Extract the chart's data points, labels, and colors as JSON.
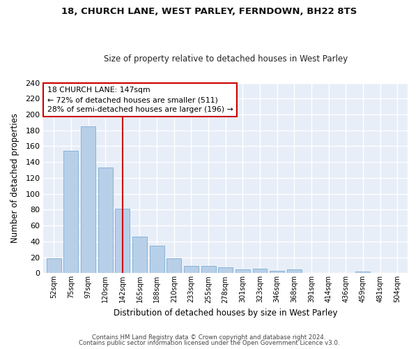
{
  "title1": "18, CHURCH LANE, WEST PARLEY, FERNDOWN, BH22 8TS",
  "title2": "Size of property relative to detached houses in West Parley",
  "xlabel": "Distribution of detached houses by size in West Parley",
  "ylabel": "Number of detached properties",
  "categories": [
    "52sqm",
    "75sqm",
    "97sqm",
    "120sqm",
    "142sqm",
    "165sqm",
    "188sqm",
    "210sqm",
    "233sqm",
    "255sqm",
    "278sqm",
    "301sqm",
    "323sqm",
    "346sqm",
    "368sqm",
    "391sqm",
    "414sqm",
    "436sqm",
    "459sqm",
    "481sqm",
    "504sqm"
  ],
  "values": [
    19,
    154,
    185,
    133,
    81,
    46,
    35,
    19,
    9,
    9,
    7,
    5,
    6,
    3,
    5,
    0,
    0,
    0,
    2,
    0,
    0
  ],
  "bar_color": "#b8cfe8",
  "bar_edge_color": "#7aadd4",
  "property_bin_index": 4,
  "annotation_line1": "18 CHURCH LANE: 147sqm",
  "annotation_line2": "← 72% of detached houses are smaller (511)",
  "annotation_line3": "28% of semi-detached houses are larger (196) →",
  "vline_color": "#cc0000",
  "annotation_box_color": "#ffffff",
  "annotation_box_edge": "#cc0000",
  "footer1": "Contains HM Land Registry data © Crown copyright and database right 2024.",
  "footer2": "Contains public sector information licensed under the Open Government Licence v3.0.",
  "ylim": [
    0,
    240
  ],
  "yticks": [
    0,
    20,
    40,
    60,
    80,
    100,
    120,
    140,
    160,
    180,
    200,
    220,
    240
  ],
  "background_color": "#ffffff",
  "plot_bg_color": "#e8eef8",
  "grid_color": "#ffffff"
}
